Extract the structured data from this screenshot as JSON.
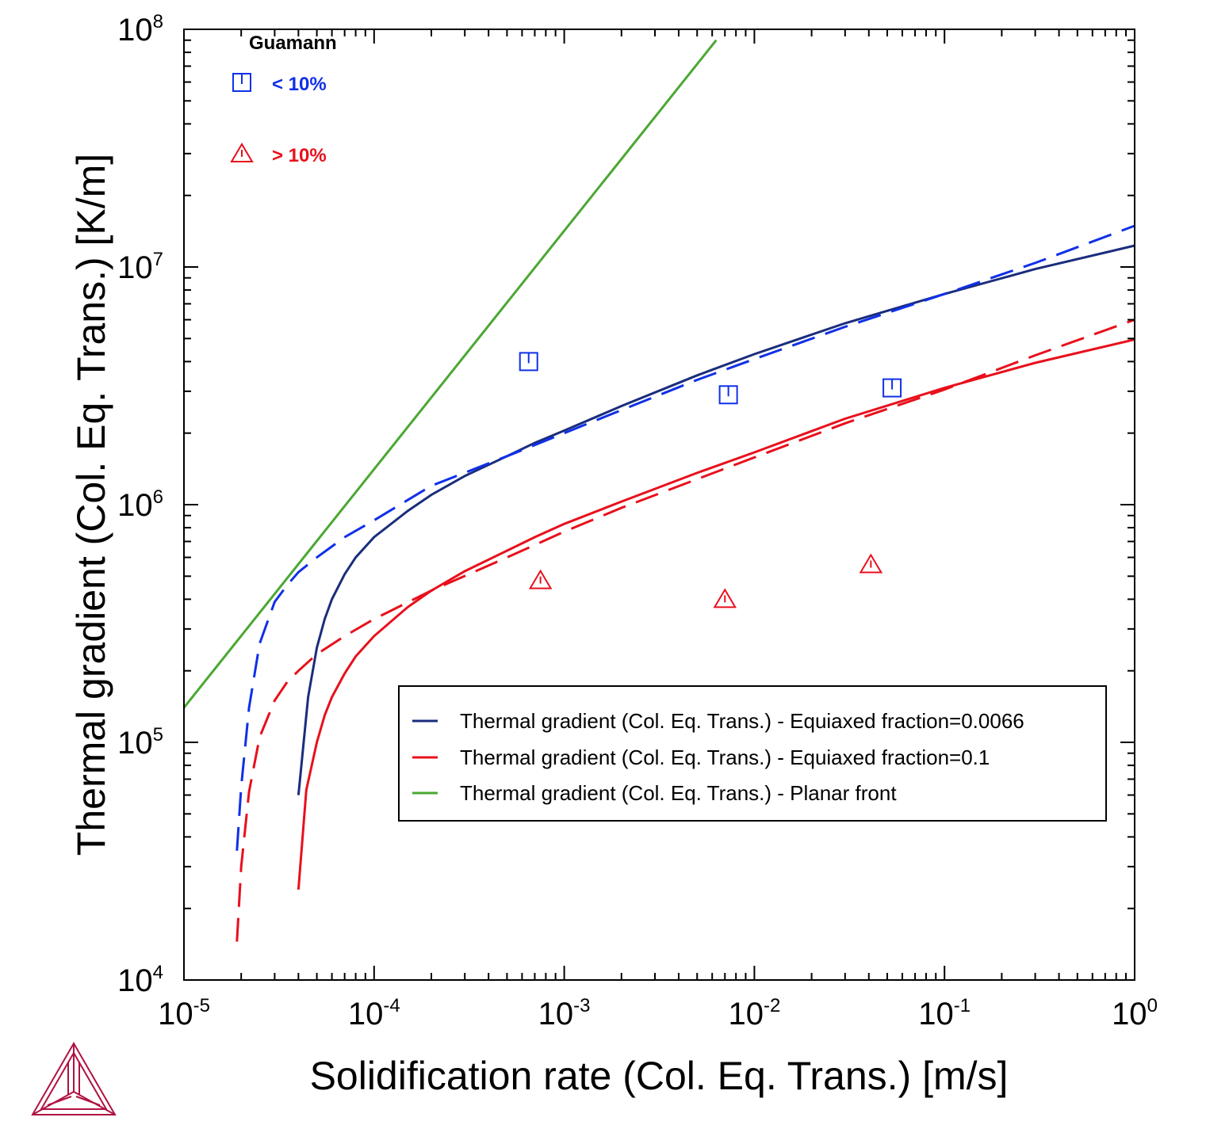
{
  "chart_data": {
    "type": "line",
    "xlabel": "Solidification rate (Col. Eq. Trans.) [m/s]",
    "ylabel": "Thermal gradient (Col. Eq. Trans.) [K/m]",
    "xscale": "log",
    "yscale": "log",
    "xlim": [
      1e-05,
      1
    ],
    "ylim": [
      10000.0,
      100000000.0
    ],
    "x_ticks": [
      {
        "base": "10",
        "exp": "-5",
        "value": 1e-05
      },
      {
        "base": "10",
        "exp": "-4",
        "value": 0.0001
      },
      {
        "base": "10",
        "exp": "-3",
        "value": 0.001
      },
      {
        "base": "10",
        "exp": "-2",
        "value": 0.01
      },
      {
        "base": "10",
        "exp": "-1",
        "value": 0.1
      },
      {
        "base": "10",
        "exp": "0",
        "value": 1
      }
    ],
    "y_ticks": [
      {
        "base": "10",
        "exp": "4",
        "value": 10000.0
      },
      {
        "base": "10",
        "exp": "5",
        "value": 100000.0
      },
      {
        "base": "10",
        "exp": "6",
        "value": 1000000.0
      },
      {
        "base": "10",
        "exp": "7",
        "value": 10000000.0
      },
      {
        "base": "10",
        "exp": "8",
        "value": 100000000.0
      }
    ],
    "grid": false,
    "legend_position": "lower-right",
    "series": [
      {
        "name": "Thermal gradient (Col. Eq. Trans.) - Equiaxed fraction=0.0066",
        "color": "#1a2d7c",
        "dash": "solid",
        "x": [
          4e-05,
          4.5e-05,
          5e-05,
          5.5e-05,
          6e-05,
          7e-05,
          8e-05,
          0.0001,
          0.00015,
          0.0002,
          0.0003,
          0.0005,
          0.0007,
          0.001,
          0.002,
          0.005,
          0.01,
          0.03,
          0.1,
          0.3,
          1
        ],
        "y": [
          60000.0,
          155000.0,
          250000.0,
          330000.0,
          400000.0,
          510000.0,
          600000.0,
          730000.0,
          940000.0,
          1100000.0,
          1320000.0,
          1600000.0,
          1820000.0,
          2050000.0,
          2600000.0,
          3500000.0,
          4300000.0,
          5800000.0,
          7700000.0,
          9800000.0,
          12300000.0
        ]
      },
      {
        "name": "Thermal gradient (Col. Eq. Trans.) - Equiaxed fraction=0.0066 (dashed)",
        "color": "#1030e8",
        "dash": "dashed",
        "x": [
          1.9e-05,
          2e-05,
          2.2e-05,
          2.5e-05,
          3e-05,
          3.5e-05,
          4e-05,
          5e-05,
          7e-05,
          0.0001,
          0.0002,
          0.0005,
          0.001,
          0.002,
          0.005,
          0.01,
          0.03,
          0.1,
          0.3,
          1
        ],
        "y": [
          35000.0,
          65000.0,
          140000.0,
          260000.0,
          390000.0,
          460000.0,
          520000.0,
          600000.0,
          730000.0,
          860000.0,
          1200000.0,
          1600000.0,
          2000000.0,
          2500000.0,
          3350000.0,
          4100000.0,
          5600000.0,
          7700000.0,
          10400000.0,
          14900000.0
        ]
      },
      {
        "name": "Thermal gradient (Col. Eq. Trans.) - Equiaxed fraction=0.1",
        "color": "#e8101c",
        "dash": "dashed",
        "x": [
          1.9e-05,
          2e-05,
          2.2e-05,
          2.5e-05,
          3e-05,
          3.5e-05,
          4e-05,
          5e-05,
          7e-05,
          0.0001,
          0.0002,
          0.0005,
          0.001,
          0.002,
          0.005,
          0.01,
          0.03,
          0.1,
          0.3,
          1
        ],
        "y": [
          14500.0,
          30000.0,
          62000.0,
          105000.0,
          150000.0,
          180000.0,
          200000.0,
          235000.0,
          280000.0,
          330000.0,
          435000.0,
          600000.0,
          770000.0,
          970000.0,
          1280000.0,
          1580000.0,
          2200000.0,
          3050000.0,
          4250000.0,
          6000000.0
        ]
      },
      {
        "name": "Thermal gradient (Col. Eq. Trans.) (red solid)",
        "color": "#e8101c",
        "dash": "solid",
        "x": [
          4e-05,
          4.4e-05,
          5e-05,
          5.5e-05,
          6e-05,
          7e-05,
          8e-05,
          0.0001,
          0.00015,
          0.0002,
          0.0003,
          0.0005,
          0.0007,
          0.001,
          0.002,
          0.005,
          0.01,
          0.03,
          0.1,
          0.3,
          1
        ],
        "y": [
          24000.0,
          63000.0,
          100000.0,
          130000.0,
          155000.0,
          195000.0,
          230000.0,
          280000.0,
          370000.0,
          435000.0,
          525000.0,
          640000.0,
          730000.0,
          830000.0,
          1030000.0,
          1360000.0,
          1660000.0,
          2300000.0,
          3100000.0,
          3950000.0,
          4950000.0
        ]
      },
      {
        "name": "Thermal gradient (Col. Eq. Trans.) - Planar front",
        "color": "#4aa832",
        "dash": "solid",
        "x": [
          1e-05,
          0.0063
        ],
        "y": [
          140000.0,
          90000000.0
        ]
      }
    ],
    "legend": {
      "entries": [
        {
          "label": "Thermal gradient (Col. Eq. Trans.) - Equiaxed fraction=0.0066",
          "color": "#1a2d7c"
        },
        {
          "label": "Thermal gradient (Col. Eq. Trans.) - Equiaxed fraction=0.1",
          "color": "#e8101c"
        },
        {
          "label": "Thermal gradient (Col. Eq. Trans.) - Planar front",
          "color": "#4aa832"
        }
      ]
    },
    "experimental": {
      "title": "Guamann",
      "groups": [
        {
          "label": "< 10%",
          "marker": "square",
          "color": "#1030e8",
          "points": [
            {
              "x": 0.00065,
              "y": 4000000.0
            },
            {
              "x": 0.0073,
              "y": 2900000.0
            },
            {
              "x": 0.053,
              "y": 3100000.0
            }
          ]
        },
        {
          "label": "> 10%",
          "marker": "triangle",
          "color": "#e8101c",
          "points": [
            {
              "x": 0.00075,
              "y": 480000.0
            },
            {
              "x": 0.007,
              "y": 400000.0
            },
            {
              "x": 0.041,
              "y": 560000.0
            }
          ]
        }
      ]
    }
  }
}
